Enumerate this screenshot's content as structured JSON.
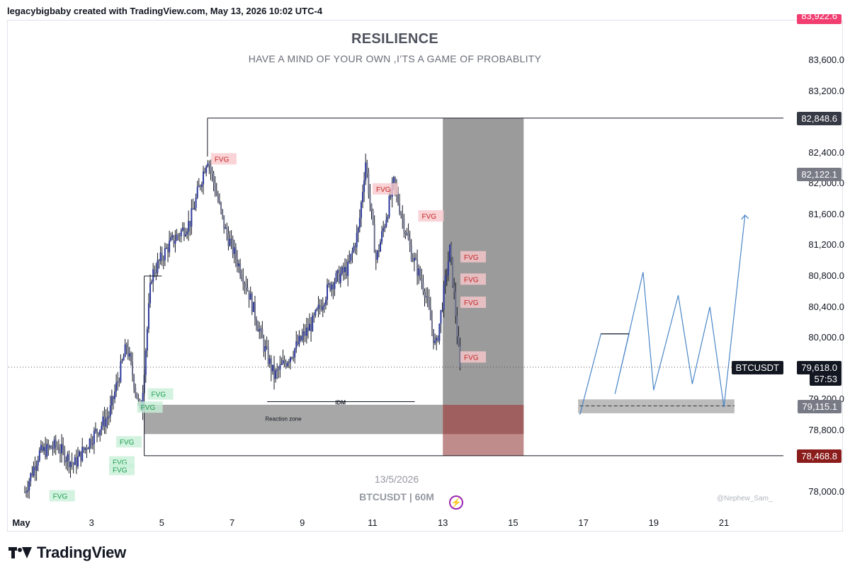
{
  "header": {
    "caption": "legacybigbaby created with TradingView.com, May 13, 2026 10:02 UTC-4"
  },
  "chart_data": {
    "type": "candlestick",
    "title": "RESILIENCE",
    "subtitle": "HAVE A MIND OF YOUR OWN ,I’TS A GAME OF PROBABLITY",
    "symbol_watermark": "BTCUSDT | 60M",
    "date_watermark": "13/5/2026",
    "author": "@Nephew_Sam_",
    "ylim": [
      77900,
      84000
    ],
    "y_ticks": [
      "83,600.0",
      "83,200.0",
      "82,400.0",
      "82,000.0",
      "81,600.0",
      "81,200.0",
      "80,800.0",
      "80,400.0",
      "80,000.0",
      "79,200.0",
      "78,800.0",
      "78,000.0"
    ],
    "x_ticks": [
      "May",
      "3",
      "5",
      "7",
      "9",
      "11",
      "13",
      "15",
      "17",
      "19",
      "21"
    ],
    "price_path": [
      {
        "day": 1.1,
        "price": 78000
      },
      {
        "day": 1.5,
        "price": 78500
      },
      {
        "day": 2.0,
        "price": 78600
      },
      {
        "day": 2.5,
        "price": 78350
      },
      {
        "day": 3.0,
        "price": 78700
      },
      {
        "day": 3.5,
        "price": 79000
      },
      {
        "day": 4.0,
        "price": 79900
      },
      {
        "day": 4.4,
        "price": 79000
      },
      {
        "day": 4.7,
        "price": 80800
      },
      {
        "day": 5.2,
        "price": 81200
      },
      {
        "day": 5.8,
        "price": 81500
      },
      {
        "day": 6.3,
        "price": 82350
      },
      {
        "day": 6.8,
        "price": 81400
      },
      {
        "day": 7.4,
        "price": 80700
      },
      {
        "day": 7.9,
        "price": 79900
      },
      {
        "day": 8.2,
        "price": 79500
      },
      {
        "day": 8.7,
        "price": 79800
      },
      {
        "day": 9.3,
        "price": 80200
      },
      {
        "day": 9.8,
        "price": 80700
      },
      {
        "day": 10.3,
        "price": 80900
      },
      {
        "day": 10.6,
        "price": 81400
      },
      {
        "day": 10.8,
        "price": 82300
      },
      {
        "day": 11.1,
        "price": 81000
      },
      {
        "day": 11.6,
        "price": 82000
      },
      {
        "day": 12.1,
        "price": 81100
      },
      {
        "day": 12.5,
        "price": 80600
      },
      {
        "day": 12.8,
        "price": 79850
      },
      {
        "day": 13.0,
        "price": 80500
      },
      {
        "day": 13.2,
        "price": 81150
      },
      {
        "day": 13.35,
        "price": 80400
      },
      {
        "day": 13.5,
        "price": 79500
      }
    ],
    "zones": [
      {
        "label": "Reaction zone",
        "type": "demand"
      },
      {
        "label": "IDM",
        "type": "liquidity"
      }
    ],
    "fvg_labels": [
      "FVG",
      "FVG",
      "FVG",
      "FVG",
      "FVG",
      "FVG",
      "FVG",
      "FVG",
      "FVG",
      "FVG",
      "FVG",
      "FVG",
      "FVG"
    ],
    "projection": [
      {
        "day": 16.9,
        "price": 79000
      },
      {
        "day": 17.5,
        "price": 80050
      },
      {
        "day": 18.3,
        "price": 80050
      },
      {
        "day": 17.9,
        "price": 79270
      },
      {
        "day": 18.7,
        "price": 80850
      },
      {
        "day": 19.0,
        "price": 79320
      },
      {
        "day": 19.7,
        "price": 80550
      },
      {
        "day": 20.1,
        "price": 79400
      },
      {
        "day": 20.6,
        "price": 80400
      },
      {
        "day": 21.0,
        "price": 79100
      },
      {
        "day": 21.6,
        "price": 81590
      }
    ],
    "price_badges": [
      {
        "label": "83,922.6",
        "color": "#f23d70"
      },
      {
        "label": "82,848.6",
        "color": "#363a45"
      },
      {
        "label": "82,122.1",
        "color": "#787b86"
      },
      {
        "label": "BTCUSDT",
        "color": "#131722"
      },
      {
        "label": "79,618.0",
        "color": "#131722"
      },
      {
        "label": "57:53",
        "color": "#131722"
      },
      {
        "label": "79,115.1",
        "color": "#787b86"
      },
      {
        "label": "78,468.8",
        "color": "#8b1c1c"
      }
    ],
    "levels": {
      "top": 82848.6,
      "bottom": 78468.8,
      "last": 79618.0,
      "target": 79115.1,
      "mid": 82122.1
    }
  },
  "branding": {
    "logo_text": "TradingView"
  }
}
